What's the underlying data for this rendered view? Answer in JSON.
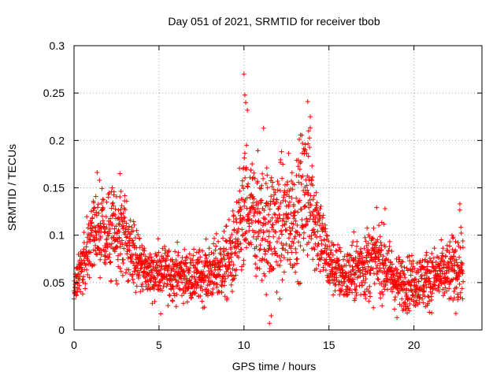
{
  "chart_data": {
    "type": "scatter",
    "title": "Day 051 of 2021, SRMTID for receiver tbob",
    "xlabel": "GPS time / hours",
    "ylabel": "SRMTID / TECUs",
    "xlim": [
      0,
      24
    ],
    "ylim": [
      0,
      0.3
    ],
    "x_ticks": [
      0,
      5,
      10,
      15,
      20
    ],
    "x_tick_labels": [
      "0",
      "5",
      "10",
      "15",
      "20"
    ],
    "y_ticks": [
      0,
      0.05,
      0.1,
      0.15,
      0.2,
      0.25,
      0.3
    ],
    "y_tick_labels": [
      "0",
      "0.05",
      "0.1",
      "0.15",
      "0.2",
      "0.25",
      "0.3"
    ],
    "grid": true,
    "marker": "plus",
    "color": "#ff0000",
    "approx_x_max": 22.9,
    "series": [
      {
        "name": "SRMTID",
        "envelope": [
          {
            "x": 0.0,
            "mean": 0.045,
            "spread": 0.008
          },
          {
            "x": 0.5,
            "mean": 0.07,
            "spread": 0.018
          },
          {
            "x": 1.0,
            "mean": 0.1,
            "spread": 0.025
          },
          {
            "x": 1.5,
            "mean": 0.11,
            "spread": 0.028
          },
          {
            "x": 2.0,
            "mean": 0.095,
            "spread": 0.03
          },
          {
            "x": 2.5,
            "mean": 0.1,
            "spread": 0.03
          },
          {
            "x": 3.0,
            "mean": 0.1,
            "spread": 0.028
          },
          {
            "x": 3.5,
            "mean": 0.08,
            "spread": 0.022
          },
          {
            "x": 4.0,
            "mean": 0.065,
            "spread": 0.02
          },
          {
            "x": 5.0,
            "mean": 0.06,
            "spread": 0.018
          },
          {
            "x": 6.0,
            "mean": 0.06,
            "spread": 0.018
          },
          {
            "x": 7.0,
            "mean": 0.055,
            "spread": 0.016
          },
          {
            "x": 8.0,
            "mean": 0.06,
            "spread": 0.02
          },
          {
            "x": 9.0,
            "mean": 0.07,
            "spread": 0.025
          },
          {
            "x": 9.5,
            "mean": 0.085,
            "spread": 0.03
          },
          {
            "x": 10.0,
            "mean": 0.12,
            "spread": 0.045
          },
          {
            "x": 10.5,
            "mean": 0.12,
            "spread": 0.04
          },
          {
            "x": 11.0,
            "mean": 0.11,
            "spread": 0.04
          },
          {
            "x": 12.0,
            "mean": 0.11,
            "spread": 0.045
          },
          {
            "x": 13.0,
            "mean": 0.12,
            "spread": 0.04
          },
          {
            "x": 13.7,
            "mean": 0.15,
            "spread": 0.05
          },
          {
            "x": 14.5,
            "mean": 0.1,
            "spread": 0.03
          },
          {
            "x": 15.0,
            "mean": 0.07,
            "spread": 0.02
          },
          {
            "x": 16.0,
            "mean": 0.055,
            "spread": 0.018
          },
          {
            "x": 17.0,
            "mean": 0.07,
            "spread": 0.025
          },
          {
            "x": 18.0,
            "mean": 0.075,
            "spread": 0.025
          },
          {
            "x": 19.0,
            "mean": 0.05,
            "spread": 0.018
          },
          {
            "x": 20.0,
            "mean": 0.05,
            "spread": 0.018
          },
          {
            "x": 21.0,
            "mean": 0.055,
            "spread": 0.02
          },
          {
            "x": 22.0,
            "mean": 0.06,
            "spread": 0.02
          },
          {
            "x": 22.9,
            "mean": 0.07,
            "spread": 0.03
          }
        ],
        "notable_points": [
          {
            "x": 10.0,
            "y": 0.27
          },
          {
            "x": 10.05,
            "y": 0.248
          },
          {
            "x": 10.1,
            "y": 0.24
          },
          {
            "x": 10.2,
            "y": 0.232
          },
          {
            "x": 10.15,
            "y": 0.195
          },
          {
            "x": 11.15,
            "y": 0.213
          },
          {
            "x": 13.75,
            "y": 0.241
          },
          {
            "x": 13.9,
            "y": 0.225
          },
          {
            "x": 13.8,
            "y": 0.21
          },
          {
            "x": 13.6,
            "y": 0.19
          },
          {
            "x": 11.5,
            "y": 0.007
          },
          {
            "x": 11.6,
            "y": 0.015
          },
          {
            "x": 2.7,
            "y": 0.165
          },
          {
            "x": 1.5,
            "y": 0.158
          },
          {
            "x": 2.25,
            "y": 0.15
          },
          {
            "x": 18.3,
            "y": 0.128
          },
          {
            "x": 22.7,
            "y": 0.133
          },
          {
            "x": 19.6,
            "y": 0.018
          },
          {
            "x": 19.0,
            "y": 0.013
          },
          {
            "x": 5.1,
            "y": 0.017
          }
        ]
      }
    ]
  }
}
